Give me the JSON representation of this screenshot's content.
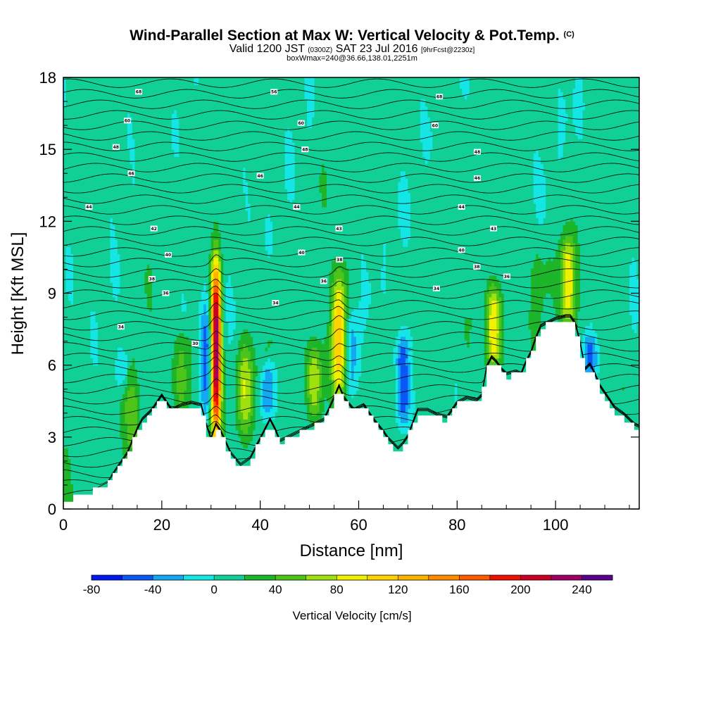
{
  "header": {
    "title": "Wind-Parallel Section at Max W: Vertical Velocity & Pot.Temp.",
    "title_mark": "(C)",
    "valid_prefix": "Valid 1200 JST",
    "valid_utc": "(0300Z)",
    "valid_date": "SAT 23 Jul 2016",
    "forecast": "[9hrFcst@2230z]",
    "box_info": "boxWmax=240@36.66,138.01,2251m"
  },
  "chart_data": {
    "type": "heatmap",
    "xlabel": "Distance [nm]",
    "ylabel": "Height [Kft MSL]",
    "xlim": [
      0,
      117
    ],
    "ylim": [
      0,
      18
    ],
    "x_ticks": [
      0,
      20,
      40,
      60,
      80,
      100
    ],
    "y_ticks": [
      0,
      3,
      6,
      9,
      12,
      15,
      18
    ],
    "colorbar": {
      "title": "Vertical Velocity [cm/s]",
      "bounds": [
        -80,
        260
      ],
      "step": 20,
      "tick_labels": [
        -80,
        -40,
        0,
        40,
        80,
        120,
        160,
        200,
        240
      ],
      "colors": [
        "#0018f0",
        "#0a58f5",
        "#12a8f4",
        "#14e6e6",
        "#10d098",
        "#1db52a",
        "#4ec41b",
        "#9fe00e",
        "#f0f000",
        "#ffd200",
        "#ffb400",
        "#ff8c00",
        "#ff5a00",
        "#f01000",
        "#cc0024",
        "#9c0066",
        "#5c0090"
      ]
    },
    "terrain_kft": [
      [
        0,
        0.3
      ],
      [
        3,
        0.5
      ],
      [
        6,
        0.7
      ],
      [
        9,
        1.0
      ],
      [
        11,
        1.6
      ],
      [
        13,
        2.2
      ],
      [
        15,
        3.2
      ],
      [
        16,
        3.6
      ],
      [
        18,
        4.0
      ],
      [
        20,
        4.6
      ],
      [
        22,
        4.0
      ],
      [
        24,
        4.2
      ],
      [
        26,
        4.3
      ],
      [
        28,
        4.2
      ],
      [
        29,
        3.4
      ],
      [
        30,
        2.8
      ],
      [
        31,
        3.4
      ],
      [
        32,
        3.1
      ],
      [
        34,
        2.2
      ],
      [
        36,
        1.7
      ],
      [
        38,
        2.0
      ],
      [
        40,
        2.8
      ],
      [
        42,
        3.6
      ],
      [
        43,
        3.2
      ],
      [
        44,
        2.7
      ],
      [
        47,
        3.0
      ],
      [
        50,
        3.3
      ],
      [
        53,
        3.6
      ],
      [
        55,
        4.5
      ],
      [
        56,
        5.0
      ],
      [
        57,
        4.5
      ],
      [
        59,
        4.0
      ],
      [
        61,
        4.2
      ],
      [
        63,
        3.6
      ],
      [
        65,
        3.1
      ],
      [
        66,
        2.8
      ],
      [
        67,
        2.6
      ],
      [
        68,
        2.4
      ],
      [
        69,
        2.6
      ],
      [
        70,
        2.9
      ],
      [
        72,
        4.0
      ],
      [
        74,
        4.0
      ],
      [
        76,
        3.8
      ],
      [
        78,
        3.7
      ],
      [
        80,
        4.3
      ],
      [
        82,
        4.5
      ],
      [
        84,
        4.4
      ],
      [
        85,
        4.6
      ],
      [
        86,
        5.8
      ],
      [
        87,
        6.2
      ],
      [
        88,
        6.0
      ],
      [
        89,
        5.7
      ],
      [
        90,
        5.5
      ],
      [
        92,
        5.6
      ],
      [
        93,
        5.5
      ],
      [
        94,
        6.0
      ],
      [
        95,
        6.4
      ],
      [
        96,
        7.0
      ],
      [
        97,
        7.5
      ],
      [
        98,
        7.6
      ],
      [
        100,
        7.8
      ],
      [
        102,
        7.9
      ],
      [
        103,
        7.9
      ],
      [
        104,
        7.6
      ],
      [
        105,
        6.8
      ],
      [
        106,
        5.7
      ],
      [
        107,
        5.9
      ],
      [
        108,
        5.5
      ],
      [
        109,
        5.0
      ],
      [
        110,
        4.7
      ],
      [
        111,
        4.4
      ],
      [
        112,
        4.1
      ],
      [
        114,
        3.8
      ],
      [
        116,
        3.4
      ],
      [
        117,
        3.3
      ]
    ],
    "updrafts": [
      {
        "x": 31.0,
        "y_bottom": 3.3,
        "y_top": 10.0,
        "peak": 240
      },
      {
        "x": 56.0,
        "y_bottom": 5.0,
        "y_top": 9.5,
        "peak": 110
      },
      {
        "x": 87.5,
        "y_bottom": 6.2,
        "y_top": 9.0,
        "peak": 100
      },
      {
        "x": 102.5,
        "y_bottom": 8.0,
        "y_top": 11.0,
        "peak": 90
      },
      {
        "x": 51.0,
        "y_bottom": 4.0,
        "y_top": 6.5,
        "peak": 70
      },
      {
        "x": 37.0,
        "y_bottom": 3.5,
        "y_top": 6.5,
        "peak": 65
      },
      {
        "x": 14.0,
        "y_bottom": 2.5,
        "y_top": 5.0,
        "peak": 35
      },
      {
        "x": 24.0,
        "y_bottom": 4.2,
        "y_top": 7.0,
        "peak": 40
      }
    ],
    "downdrafts": [
      {
        "x": 29.0,
        "y_bottom": 4.0,
        "y_top": 8.5,
        "peak": -60
      },
      {
        "x": 41.5,
        "y_bottom": 4.0,
        "y_top": 6.0,
        "peak": -60
      },
      {
        "x": 69.0,
        "y_bottom": 3.5,
        "y_top": 7.0,
        "peak": -80
      },
      {
        "x": 58.5,
        "y_bottom": 5.0,
        "y_top": 8.0,
        "peak": -40
      },
      {
        "x": 107.0,
        "y_bottom": 5.9,
        "y_top": 7.0,
        "peak": -50
      },
      {
        "x": 12.0,
        "y_bottom": 5.0,
        "y_top": 6.5,
        "peak": -30
      }
    ],
    "isentrope_labels": [
      {
        "x": 15.3,
        "y": 17.4,
        "text": "68"
      },
      {
        "x": 13.0,
        "y": 16.2,
        "text": "60"
      },
      {
        "x": 10.7,
        "y": 15.1,
        "text": "48"
      },
      {
        "x": 13.8,
        "y": 14.0,
        "text": "46"
      },
      {
        "x": 5.2,
        "y": 12.6,
        "text": "44"
      },
      {
        "x": 18.4,
        "y": 11.7,
        "text": "42"
      },
      {
        "x": 21.3,
        "y": 10.6,
        "text": "40"
      },
      {
        "x": 18.0,
        "y": 9.6,
        "text": "38"
      },
      {
        "x": 20.8,
        "y": 9.0,
        "text": "36"
      },
      {
        "x": 11.7,
        "y": 7.6,
        "text": "34"
      },
      {
        "x": 26.8,
        "y": 6.9,
        "text": "30"
      },
      {
        "x": 42.8,
        "y": 17.4,
        "text": "56"
      },
      {
        "x": 48.3,
        "y": 16.1,
        "text": "60"
      },
      {
        "x": 49.1,
        "y": 15.0,
        "text": "48"
      },
      {
        "x": 40.0,
        "y": 13.9,
        "text": "46"
      },
      {
        "x": 47.4,
        "y": 12.6,
        "text": "44"
      },
      {
        "x": 56.0,
        "y": 11.7,
        "text": "43"
      },
      {
        "x": 48.4,
        "y": 10.7,
        "text": "40"
      },
      {
        "x": 56.1,
        "y": 10.4,
        "text": "38"
      },
      {
        "x": 52.9,
        "y": 9.5,
        "text": "36"
      },
      {
        "x": 43.1,
        "y": 8.6,
        "text": "34"
      },
      {
        "x": 76.4,
        "y": 17.2,
        "text": "68"
      },
      {
        "x": 75.5,
        "y": 16.0,
        "text": "60"
      },
      {
        "x": 84.1,
        "y": 14.9,
        "text": "48"
      },
      {
        "x": 84.1,
        "y": 13.8,
        "text": "46"
      },
      {
        "x": 80.9,
        "y": 12.6,
        "text": "44"
      },
      {
        "x": 87.4,
        "y": 11.7,
        "text": "43"
      },
      {
        "x": 80.9,
        "y": 10.8,
        "text": "40"
      },
      {
        "x": 84.0,
        "y": 10.1,
        "text": "38"
      },
      {
        "x": 90.1,
        "y": 9.7,
        "text": "36"
      },
      {
        "x": 75.8,
        "y": 9.2,
        "text": "34"
      }
    ]
  }
}
